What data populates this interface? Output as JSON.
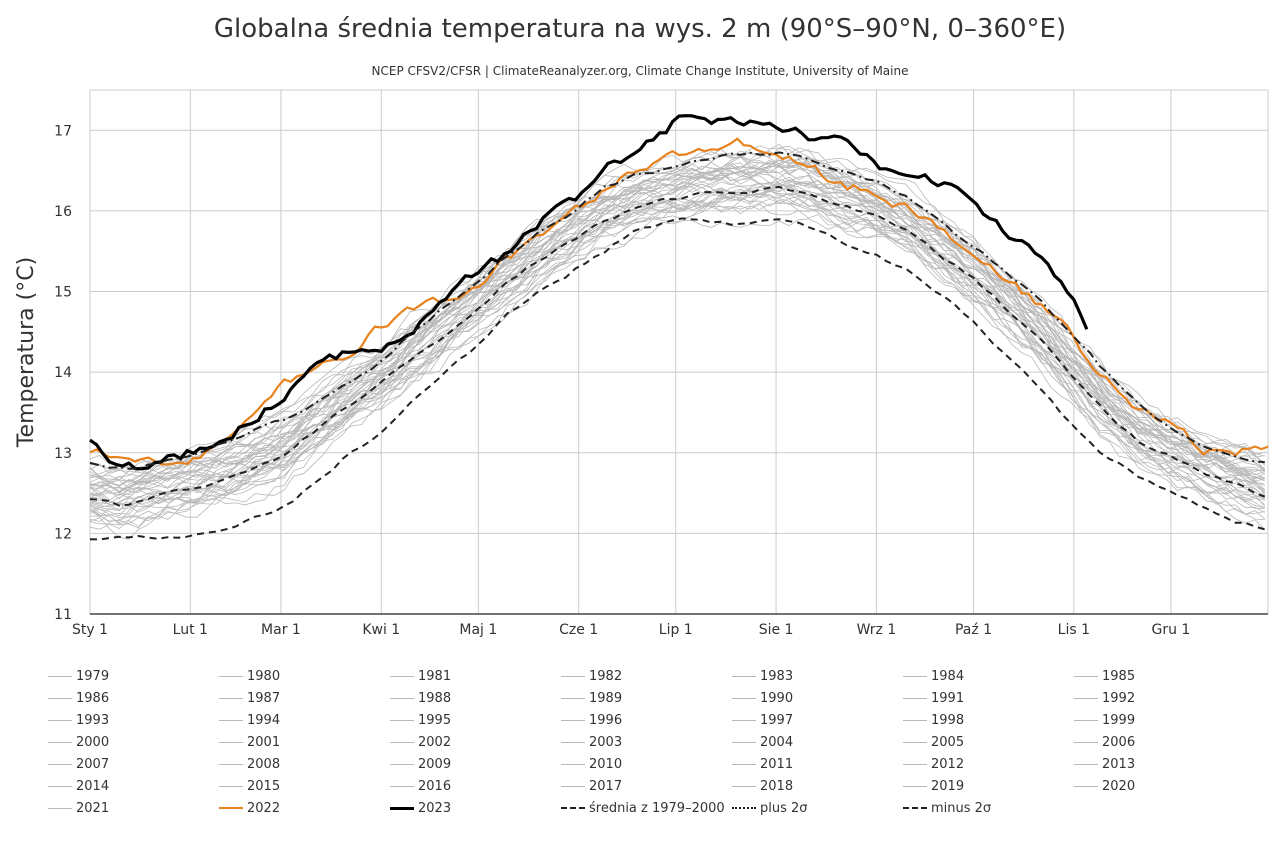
{
  "chart_data": {
    "type": "line",
    "title": "Globalna średnia temperatura na wys. 2 m (90°S–90°N, 0–360°E)",
    "subtitle": "NCEP CFSV2/CFSR | ClimateReanalyzer.org, Climate Change Institute, University of Maine",
    "ylabel": "Temperatura (°C)",
    "xlabel": "",
    "xlim": [
      1,
      365
    ],
    "ylim": [
      11,
      17.5
    ],
    "yticks": [
      11,
      12,
      13,
      14,
      15,
      16,
      17
    ],
    "xticks": [
      {
        "day": 1,
        "label": "Sty 1"
      },
      {
        "day": 32,
        "label": "Lut 1"
      },
      {
        "day": 60,
        "label": "Mar 1"
      },
      {
        "day": 91,
        "label": "Kwi 1"
      },
      {
        "day": 121,
        "label": "Maj 1"
      },
      {
        "day": 152,
        "label": "Cze 1"
      },
      {
        "day": 182,
        "label": "Lip 1"
      },
      {
        "day": 213,
        "label": "Sie 1"
      },
      {
        "day": 244,
        "label": "Wrz 1"
      },
      {
        "day": 274,
        "label": "Paź 1"
      },
      {
        "day": 305,
        "label": "Lis 1"
      },
      {
        "day": 335,
        "label": "Gru 1"
      }
    ],
    "grid": true,
    "legend_position": "bottom",
    "colors": {
      "past_years": "#b8b8b8",
      "y2022": "#e8821e",
      "y2023": "#000000",
      "climatology": "#222222",
      "grid": "#cccccc"
    },
    "background_years": [
      "1979",
      "1980",
      "1981",
      "1982",
      "1983",
      "1984",
      "1985",
      "1986",
      "1987",
      "1988",
      "1989",
      "1990",
      "1991",
      "1992",
      "1993",
      "1994",
      "1995",
      "1996",
      "1997",
      "1998",
      "1999",
      "2000",
      "2001",
      "2002",
      "2003",
      "2004",
      "2005",
      "2006",
      "2007",
      "2008",
      "2009",
      "2010",
      "2011",
      "2012",
      "2013",
      "2014",
      "2015",
      "2016",
      "2017",
      "2018",
      "2019",
      "2020",
      "2021"
    ],
    "series": [
      {
        "name": "2022",
        "color": "#e8821e",
        "x": [
          1,
          10,
          20,
          32,
          45,
          60,
          70,
          80,
          91,
          100,
          110,
          121,
          130,
          140,
          152,
          160,
          170,
          182,
          190,
          200,
          213,
          222,
          232,
          244,
          254,
          264,
          274,
          284,
          296,
          305,
          315,
          325,
          335,
          345,
          355,
          365
        ],
        "values": [
          12.95,
          12.95,
          12.9,
          12.95,
          13.2,
          13.8,
          14.0,
          14.25,
          14.55,
          14.8,
          14.85,
          15.1,
          15.4,
          15.7,
          16.0,
          16.3,
          16.55,
          16.65,
          16.8,
          16.85,
          16.78,
          16.55,
          16.35,
          16.2,
          16.0,
          15.8,
          15.45,
          15.1,
          14.8,
          14.4,
          13.95,
          13.55,
          13.35,
          13.05,
          12.95,
          13.1
        ]
      },
      {
        "name": "2023",
        "color": "#000000",
        "x": [
          1,
          10,
          20,
          32,
          45,
          60,
          70,
          80,
          91,
          100,
          110,
          121,
          130,
          140,
          152,
          160,
          170,
          182,
          190,
          200,
          213,
          222,
          232,
          244,
          254,
          264,
          274,
          284,
          296,
          305,
          310
        ],
        "values": [
          13.15,
          12.85,
          12.8,
          13.0,
          13.2,
          13.7,
          14.05,
          14.2,
          14.35,
          14.55,
          14.95,
          15.25,
          15.45,
          15.85,
          16.15,
          16.6,
          16.65,
          17.1,
          17.05,
          17.1,
          17.05,
          16.95,
          16.85,
          16.55,
          16.55,
          16.35,
          16.15,
          15.75,
          15.35,
          14.95,
          14.5
        ]
      },
      {
        "name": "średnia z 1979–2000",
        "color": "#222222",
        "dash": "dashed",
        "x": [
          1,
          10,
          20,
          32,
          45,
          60,
          70,
          80,
          91,
          100,
          110,
          121,
          130,
          140,
          152,
          160,
          170,
          182,
          190,
          200,
          213,
          222,
          232,
          244,
          254,
          264,
          274,
          284,
          296,
          305,
          315,
          325,
          335,
          345,
          355,
          365
        ],
        "values": [
          12.4,
          12.35,
          12.45,
          12.55,
          12.7,
          12.95,
          13.25,
          13.55,
          13.85,
          14.15,
          14.45,
          14.8,
          15.1,
          15.4,
          15.7,
          15.9,
          16.05,
          16.15,
          16.2,
          16.25,
          16.27,
          16.25,
          16.1,
          15.95,
          15.75,
          15.45,
          15.15,
          14.8,
          14.35,
          13.95,
          13.5,
          13.15,
          12.95,
          12.75,
          12.6,
          12.45
        ]
      },
      {
        "name": "plus 2σ",
        "color": "#222222",
        "dash": "dashdot",
        "x": [
          1,
          10,
          20,
          32,
          45,
          60,
          70,
          80,
          91,
          100,
          110,
          121,
          130,
          140,
          152,
          160,
          170,
          182,
          190,
          200,
          213,
          222,
          232,
          244,
          254,
          264,
          274,
          284,
          296,
          305,
          315,
          325,
          335,
          345,
          355,
          365
        ],
        "values": [
          12.85,
          12.8,
          12.85,
          12.95,
          13.15,
          13.4,
          13.6,
          13.85,
          14.15,
          14.45,
          14.8,
          15.15,
          15.45,
          15.75,
          16.05,
          16.3,
          16.45,
          16.55,
          16.62,
          16.7,
          16.72,
          16.65,
          16.5,
          16.35,
          16.15,
          15.85,
          15.55,
          15.25,
          14.85,
          14.45,
          14.0,
          13.6,
          13.3,
          13.1,
          12.95,
          12.85
        ]
      },
      {
        "name": "minus 2σ",
        "color": "#222222",
        "dash": "dashed",
        "x": [
          1,
          10,
          20,
          32,
          45,
          60,
          70,
          80,
          91,
          100,
          110,
          121,
          130,
          140,
          152,
          160,
          170,
          182,
          190,
          200,
          213,
          222,
          232,
          244,
          254,
          264,
          274,
          284,
          296,
          305,
          315,
          325,
          335,
          345,
          355,
          365
        ],
        "values": [
          11.95,
          11.95,
          11.95,
          11.95,
          12.1,
          12.3,
          12.6,
          12.95,
          13.25,
          13.65,
          14.0,
          14.35,
          14.7,
          15.0,
          15.3,
          15.5,
          15.75,
          15.9,
          15.9,
          15.85,
          15.87,
          15.82,
          15.65,
          15.45,
          15.25,
          14.95,
          14.6,
          14.2,
          13.75,
          13.3,
          12.95,
          12.7,
          12.5,
          12.3,
          12.15,
          12.05
        ]
      }
    ]
  },
  "legend": {
    "items": [
      {
        "label": "1979",
        "kind": "past"
      },
      {
        "label": "1980",
        "kind": "past"
      },
      {
        "label": "1981",
        "kind": "past"
      },
      {
        "label": "1982",
        "kind": "past"
      },
      {
        "label": "1983",
        "kind": "past"
      },
      {
        "label": "1984",
        "kind": "past"
      },
      {
        "label": "1985",
        "kind": "past"
      },
      {
        "label": "1986",
        "kind": "past"
      },
      {
        "label": "1987",
        "kind": "past"
      },
      {
        "label": "1988",
        "kind": "past"
      },
      {
        "label": "1989",
        "kind": "past"
      },
      {
        "label": "1990",
        "kind": "past"
      },
      {
        "label": "1991",
        "kind": "past"
      },
      {
        "label": "1992",
        "kind": "past"
      },
      {
        "label": "1993",
        "kind": "past"
      },
      {
        "label": "1994",
        "kind": "past"
      },
      {
        "label": "1995",
        "kind": "past"
      },
      {
        "label": "1996",
        "kind": "past"
      },
      {
        "label": "1997",
        "kind": "past"
      },
      {
        "label": "1998",
        "kind": "past"
      },
      {
        "label": "1999",
        "kind": "past"
      },
      {
        "label": "2000",
        "kind": "past"
      },
      {
        "label": "2001",
        "kind": "past"
      },
      {
        "label": "2002",
        "kind": "past"
      },
      {
        "label": "2003",
        "kind": "past"
      },
      {
        "label": "2004",
        "kind": "past"
      },
      {
        "label": "2005",
        "kind": "past"
      },
      {
        "label": "2006",
        "kind": "past"
      },
      {
        "label": "2007",
        "kind": "past"
      },
      {
        "label": "2008",
        "kind": "past"
      },
      {
        "label": "2009",
        "kind": "past"
      },
      {
        "label": "2010",
        "kind": "past"
      },
      {
        "label": "2011",
        "kind": "past"
      },
      {
        "label": "2012",
        "kind": "past"
      },
      {
        "label": "2013",
        "kind": "past"
      },
      {
        "label": "2014",
        "kind": "past"
      },
      {
        "label": "2015",
        "kind": "past"
      },
      {
        "label": "2016",
        "kind": "past"
      },
      {
        "label": "2017",
        "kind": "past"
      },
      {
        "label": "2018",
        "kind": "past"
      },
      {
        "label": "2019",
        "kind": "past"
      },
      {
        "label": "2020",
        "kind": "past"
      },
      {
        "label": "2021",
        "kind": "past"
      },
      {
        "label": "2022",
        "kind": "y2022"
      },
      {
        "label": "2023",
        "kind": "y2023"
      },
      {
        "label": "średnia z 1979–2000",
        "kind": "mean"
      },
      {
        "label": "plus 2σ",
        "kind": "plus"
      },
      {
        "label": "minus 2σ",
        "kind": "minus"
      }
    ]
  }
}
